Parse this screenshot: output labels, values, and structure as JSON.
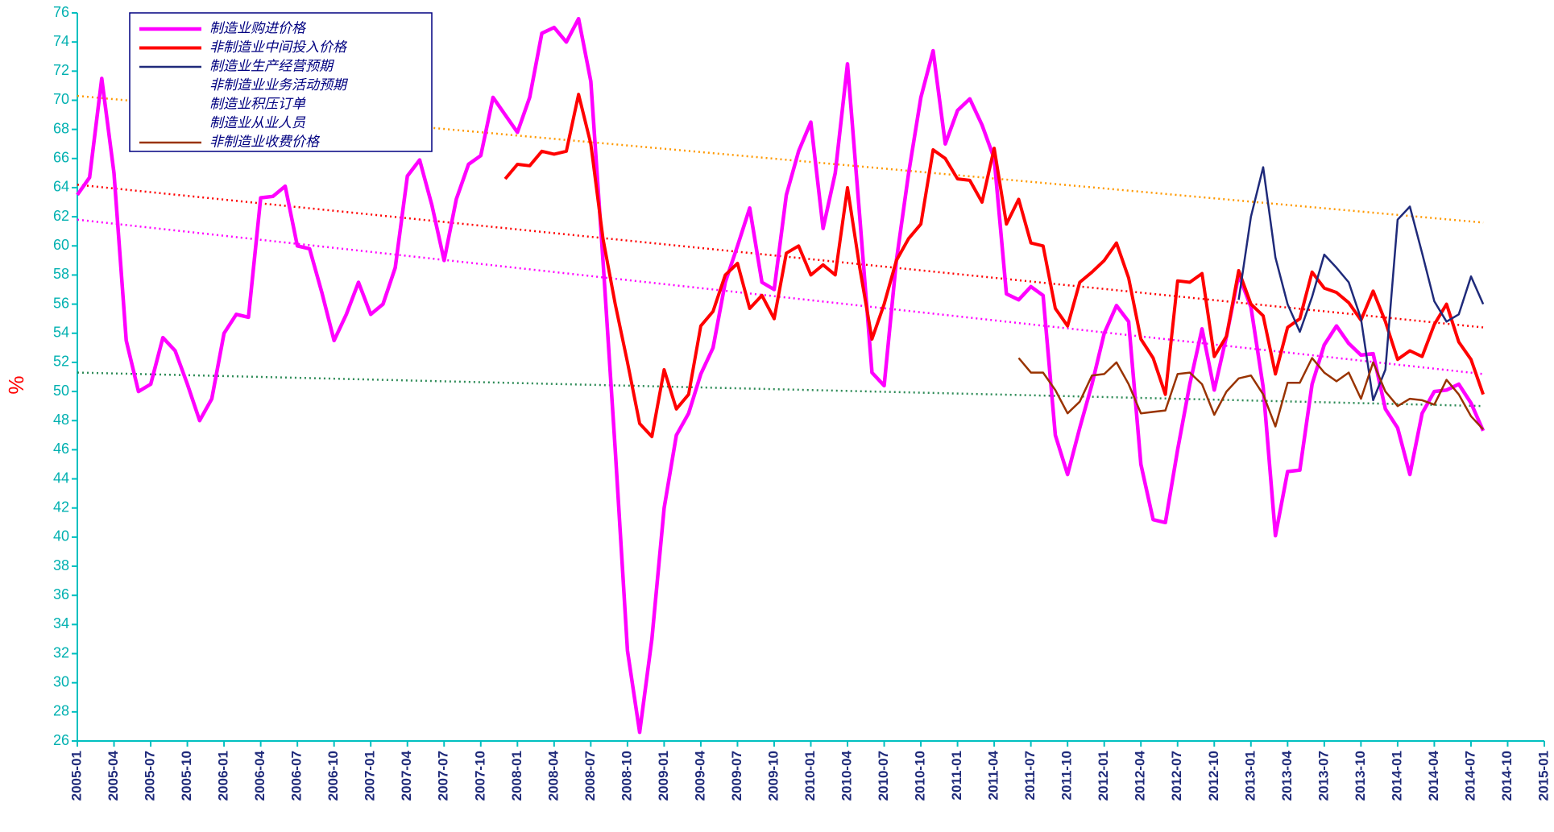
{
  "chart_data": {
    "type": "line",
    "y_label": "%",
    "categories": [
      "2005-01",
      null,
      null,
      "2005-04",
      null,
      null,
      "2005-07",
      null,
      null,
      "2005-10",
      null,
      null,
      "2006-01",
      null,
      null,
      "2006-04",
      null,
      null,
      "2006-07",
      null,
      null,
      "2006-10",
      null,
      null,
      "2007-01",
      null,
      null,
      "2007-04",
      null,
      null,
      "2007-07",
      null,
      null,
      "2007-10",
      null,
      null,
      "2008-01",
      null,
      null,
      "2008-04",
      null,
      null,
      "2008-07",
      null,
      null,
      "2008-10",
      null,
      null,
      "2009-01",
      null,
      null,
      "2009-04",
      null,
      null,
      "2009-07",
      null,
      null,
      "2009-10",
      null,
      null,
      "2010-01",
      null,
      null,
      "2010-04",
      null,
      null,
      "2010-07",
      null,
      null,
      "2010-10",
      null,
      null,
      "2011-01",
      null,
      null,
      "2011-04",
      null,
      null,
      "2011-07",
      null,
      null,
      "2011-10",
      null,
      null,
      "2012-01",
      null,
      null,
      "2012-04",
      null,
      null,
      "2012-07",
      null,
      null,
      "2012-10",
      null,
      null,
      "2013-01",
      null,
      null,
      "2013-04",
      null,
      null,
      "2013-07",
      null,
      null,
      "2013-10",
      null,
      null,
      "2014-01",
      null,
      null,
      "2014-04",
      null,
      null,
      "2014-07",
      null,
      null,
      "2014-10",
      null,
      null,
      "2015-01"
    ],
    "series": [
      {
        "name": "制造业购进价格",
        "color": "#ff00ff",
        "width": 4.5,
        "values": [
          63.5,
          64.7,
          71.5,
          65,
          53.5,
          50,
          50.5,
          53.7,
          52.8,
          50.5,
          48,
          49.5,
          54,
          55.3,
          55.1,
          63.3,
          63.4,
          64.1,
          60,
          59.8,
          56.8,
          53.5,
          55.3,
          57.5,
          55.3,
          56,
          58.5,
          64.8,
          65.9,
          62.8,
          59,
          63.2,
          65.6,
          66.2,
          70.2,
          69,
          67.8,
          70.2,
          74.6,
          75,
          74,
          75.6,
          71.3,
          59,
          46,
          32.2,
          26.6,
          33,
          42,
          47,
          48.5,
          51.2,
          53,
          57.5,
          60,
          62.6,
          57.5,
          57,
          63.5,
          66.5,
          68.5,
          61.2,
          65,
          72.5,
          62,
          51.3,
          50.4,
          59,
          65,
          70.2,
          73.4,
          67,
          69.3,
          70.1,
          68.3,
          66,
          56.7,
          56.3,
          57.2,
          56.6,
          47,
          44.3,
          47.5,
          50.5,
          54,
          55.9,
          54.8,
          45,
          41.2,
          41,
          46,
          50.5,
          54.3,
          50.1,
          53.8,
          58,
          55.8,
          50.3,
          40.1,
          44.5,
          44.6,
          50.5,
          53.2,
          54.5,
          53.3,
          52.5,
          52.6,
          48.8,
          47.5,
          44.3,
          48.5,
          50,
          50.1,
          50.5,
          49.2,
          47.3,
          null,
          null,
          null,
          null,
          null
        ]
      },
      {
        "name": "非制造业中间投入价格",
        "color": "#ff0000",
        "width": 4,
        "values": [
          null,
          null,
          null,
          null,
          null,
          null,
          null,
          null,
          null,
          null,
          null,
          null,
          null,
          null,
          null,
          null,
          null,
          null,
          null,
          null,
          null,
          null,
          null,
          null,
          null,
          null,
          null,
          null,
          null,
          null,
          null,
          null,
          null,
          null,
          null,
          64.6,
          65.6,
          65.5,
          66.5,
          66.3,
          66.5,
          70.4,
          67,
          60.5,
          56,
          52,
          47.8,
          46.9,
          51.5,
          48.8,
          49.8,
          54.5,
          55.5,
          58,
          58.8,
          55.7,
          56.6,
          55,
          59.5,
          60,
          58,
          58.7,
          58,
          64,
          58.5,
          53.6,
          56,
          59,
          60.5,
          61.5,
          66.6,
          66,
          64.6,
          64.5,
          63,
          66.7,
          61.5,
          63.2,
          60.2,
          60,
          55.7,
          54.5,
          57.5,
          58.2,
          59,
          60.2,
          57.8,
          53.6,
          52.3,
          49.8,
          57.6,
          57.5,
          58.1,
          52.4,
          53.8,
          58.3,
          56,
          55.2,
          51.2,
          54.4,
          55,
          58.2,
          57.1,
          56.8,
          56.1,
          54.9,
          56.9,
          54.8,
          52.2,
          52.8,
          52.4,
          54.6,
          56,
          53.4,
          52.2,
          49.8,
          null,
          null,
          null,
          null,
          null
        ]
      },
      {
        "name": "制造业生产经营预期",
        "color": "#1f2a7a",
        "width": 2.5,
        "values": [
          null,
          null,
          null,
          null,
          null,
          null,
          null,
          null,
          null,
          null,
          null,
          null,
          null,
          null,
          null,
          null,
          null,
          null,
          null,
          null,
          null,
          null,
          null,
          null,
          null,
          null,
          null,
          null,
          null,
          null,
          null,
          null,
          null,
          null,
          null,
          null,
          null,
          null,
          null,
          null,
          null,
          null,
          null,
          null,
          null,
          null,
          null,
          null,
          null,
          null,
          null,
          null,
          null,
          null,
          null,
          null,
          null,
          null,
          null,
          null,
          null,
          null,
          null,
          null,
          null,
          null,
          null,
          null,
          null,
          null,
          null,
          null,
          null,
          null,
          null,
          null,
          null,
          null,
          null,
          null,
          null,
          null,
          null,
          null,
          null,
          null,
          null,
          null,
          null,
          null,
          null,
          null,
          null,
          null,
          null,
          56.3,
          62,
          65.4,
          59.2,
          56,
          54.1,
          56.5,
          59.4,
          58.5,
          57.5,
          55,
          49.4,
          51.5,
          61.8,
          62.7,
          59.5,
          56.2,
          54.8,
          55.3,
          57.9,
          56,
          null,
          null,
          null,
          null,
          null
        ]
      },
      {
        "name": "非制造业业务活动预期"
      },
      {
        "name": "制造业积压订单"
      },
      {
        "name": "制造业从业人员"
      },
      {
        "name": "非制造业收费价格",
        "color": "#993300",
        "width": 2.5,
        "values": [
          null,
          null,
          null,
          null,
          null,
          null,
          null,
          null,
          null,
          null,
          null,
          null,
          null,
          null,
          null,
          null,
          null,
          null,
          null,
          null,
          null,
          null,
          null,
          null,
          null,
          null,
          null,
          null,
          null,
          null,
          null,
          null,
          null,
          null,
          null,
          null,
          null,
          null,
          null,
          null,
          null,
          null,
          null,
          null,
          null,
          null,
          null,
          null,
          null,
          null,
          null,
          null,
          null,
          null,
          null,
          null,
          null,
          null,
          null,
          null,
          null,
          null,
          null,
          null,
          null,
          null,
          null,
          null,
          null,
          null,
          null,
          null,
          null,
          null,
          null,
          null,
          null,
          52.3,
          51.3,
          51.3,
          50.1,
          48.5,
          49.3,
          51.1,
          51.2,
          52,
          50.5,
          48.5,
          48.6,
          48.7,
          51.2,
          51.3,
          50.5,
          48.4,
          50,
          50.9,
          51.1,
          49.8,
          47.6,
          50.6,
          50.6,
          52.3,
          51.3,
          50.7,
          51.3,
          49.5,
          52,
          50,
          49,
          49.5,
          49.4,
          49.1,
          50.8,
          49.8,
          48.3,
          47.4,
          null,
          null,
          null,
          null,
          null
        ]
      }
    ],
    "trendlines": [
      {
        "color": "#ff9900",
        "values": [
          70.3,
          61.6
        ]
      },
      {
        "color": "#ff0000",
        "values": [
          64.2,
          54.4
        ]
      },
      {
        "color": "#ff00ff",
        "values": [
          61.8,
          51.2
        ]
      },
      {
        "color": "#2e8b57",
        "values": [
          51.3,
          49.0
        ]
      }
    ],
    "ylim": [
      26,
      76
    ],
    "yticks": [
      26,
      28,
      30,
      32,
      34,
      36,
      38,
      40,
      42,
      44,
      46,
      48,
      50,
      52,
      54,
      56,
      58,
      60,
      62,
      64,
      66,
      68,
      70,
      72,
      74,
      76
    ]
  }
}
